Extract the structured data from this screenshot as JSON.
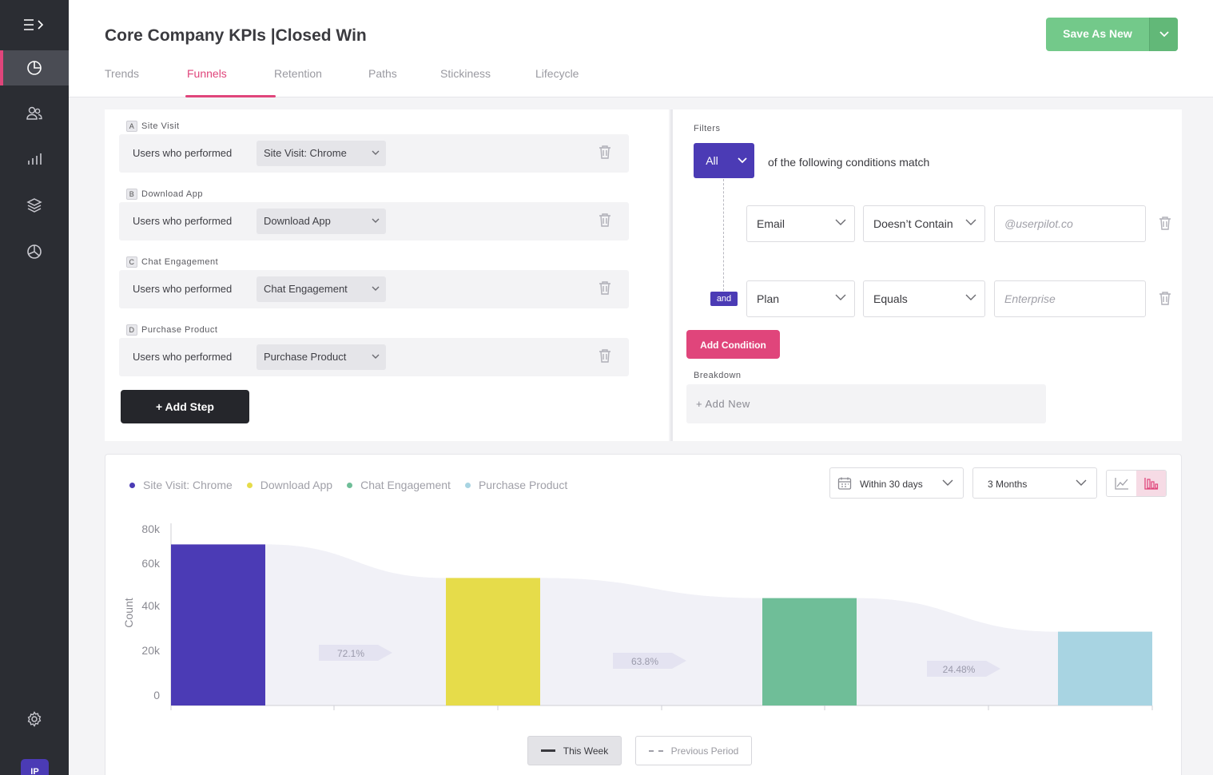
{
  "report": {
    "title": "Core Company KPIs |Closed Win",
    "save_label": "Save As New"
  },
  "tabs": [
    {
      "label": "Trends"
    },
    {
      "label": "Funnels"
    },
    {
      "label": "Retention"
    },
    {
      "label": "Paths"
    },
    {
      "label": "Stickiness"
    },
    {
      "label": "Lifecycle"
    }
  ],
  "user": {
    "initials": "IP"
  },
  "steps": [
    {
      "letter": "A",
      "name": "Site Visit",
      "prefix": "Users who performed",
      "event": "Site Visit: Chrome"
    },
    {
      "letter": "B",
      "name": "Download App",
      "prefix": "Users who performed",
      "event": "Download App"
    },
    {
      "letter": "C",
      "name": "Chat Engagement",
      "prefix": "Users who performed",
      "event": "Chat Engagement"
    },
    {
      "letter": "D",
      "name": "Purchase Product",
      "prefix": "Users who performed",
      "event": "Purchase Product"
    }
  ],
  "add_step_label": "+  Add Step",
  "filters": {
    "title": "Filters",
    "match_mode": "All",
    "match_text": "of the following conditions match",
    "joiner": "and",
    "conditions": [
      {
        "property": "Email",
        "operator": "Doesn’t Contain",
        "placeholder": "@userpilot.co"
      },
      {
        "property": "Plan",
        "operator": "Equals",
        "placeholder": "Enterprise"
      }
    ],
    "add_condition_label": "Add Condition",
    "breakdown_title": "Breakdown",
    "breakdown_add": "+ Add New"
  },
  "chart_controls": {
    "date_range": "Within 30 days",
    "period": "3 Months",
    "this_week": "This Week",
    "previous_period": "Previous Period"
  },
  "colors": {
    "accent": "#e0457b",
    "primary": "#4b3bb5",
    "success": "#73c98a"
  },
  "chart_data": {
    "type": "bar",
    "ylabel": "Count",
    "ylim": [
      0,
      80000
    ],
    "yticks": [
      "0",
      "20k",
      "40k",
      "60k",
      "80k"
    ],
    "series": [
      {
        "name": "Site Visit: Chrome",
        "value": 72000,
        "color": "#4b3bb5"
      },
      {
        "name": "Download App",
        "value": 57000,
        "color": "#e6dc4a"
      },
      {
        "name": "Chat Engagement",
        "value": 48000,
        "color": "#6fbe98"
      },
      {
        "name": "Purchase Product",
        "value": 33000,
        "color": "#a8d4e2"
      }
    ],
    "conversion_labels": [
      "72.1%",
      "63.8%",
      "24.48%"
    ],
    "grid": false
  }
}
